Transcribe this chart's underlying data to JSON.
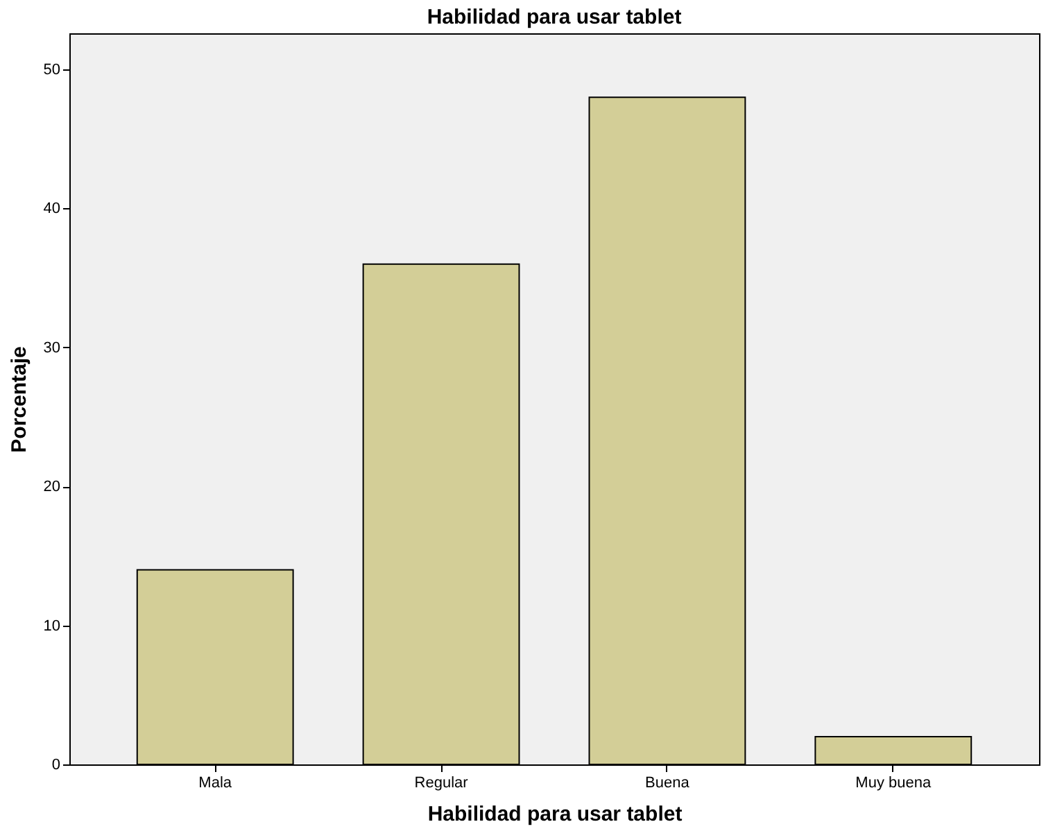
{
  "chart_data": {
    "type": "bar",
    "title": "Habilidad para usar tablet",
    "xlabel": "Habilidad para usar tablet",
    "ylabel": "Porcentaje",
    "categories": [
      "Mala",
      "Regular",
      "Buena",
      "Muy buena"
    ],
    "values": [
      14,
      36,
      48,
      2
    ],
    "color": "#d3ce97",
    "ylim": [
      0,
      52.6
    ],
    "yticks": [
      0,
      10,
      20,
      30,
      40,
      50
    ],
    "grid": false
  }
}
